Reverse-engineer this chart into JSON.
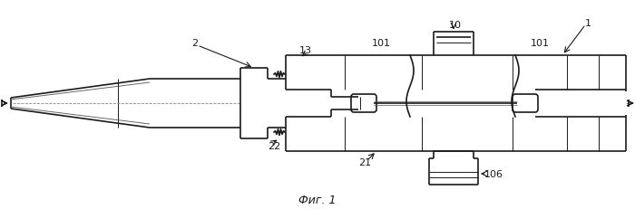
{
  "bg_color": "#ffffff",
  "line_color": "#1a1a1a",
  "fig_label": "Фиг. 1"
}
